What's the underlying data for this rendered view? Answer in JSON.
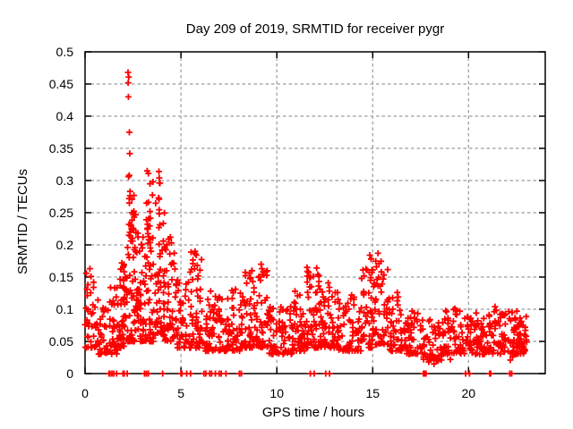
{
  "chart_data": {
    "type": "scatter",
    "title": "Day 209 of 2019, SRMTID for receiver pygr",
    "xlabel": "GPS time / hours",
    "ylabel": "SRMTID / TECUs",
    "xlim": [
      0,
      24
    ],
    "ylim": [
      0,
      0.5
    ],
    "xticks": [
      0,
      5,
      10,
      15,
      20
    ],
    "xtick_labels": [
      "0",
      "5",
      "10",
      "15",
      "20"
    ],
    "yticks": [
      0,
      0.05,
      0.1,
      0.15,
      0.2,
      0.25,
      0.3,
      0.35,
      0.4,
      0.45,
      0.5
    ],
    "ytick_labels": [
      "0",
      "0.05",
      "0.1",
      "0.15",
      "0.2",
      "0.25",
      "0.3",
      "0.35",
      "0.4",
      "0.45",
      "0.5"
    ],
    "grid": {
      "visible": true,
      "style": "dashed",
      "color": "#9b9b9b"
    },
    "legend": "none",
    "colors": {
      "marker": "#ff0000",
      "border": "#000000",
      "text": "#000000",
      "background": "#ffffff"
    },
    "marker": {
      "shape": "plus",
      "size": 7,
      "stroke_width": 1.8
    },
    "series": [
      {
        "name": "SRMTID",
        "color": "#ff0000",
        "notable_points": [
          [
            2.24,
            0.468
          ],
          [
            2.28,
            0.461
          ],
          [
            2.25,
            0.452
          ],
          [
            2.26,
            0.43
          ],
          [
            2.31,
            0.375
          ],
          [
            2.33,
            0.342
          ],
          [
            2.3,
            0.308
          ],
          [
            2.27,
            0.306
          ],
          [
            3.24,
            0.315
          ],
          [
            3.3,
            0.311
          ],
          [
            3.85,
            0.314
          ],
          [
            3.87,
            0.304
          ],
          [
            3.88,
            0.296
          ],
          [
            2.35,
            0.283
          ],
          [
            2.55,
            0.277
          ],
          [
            2.3,
            0.272
          ],
          [
            3.84,
            0.273
          ],
          [
            3.86,
            0.271
          ],
          [
            2.31,
            0.265
          ],
          [
            3.21,
            0.265
          ],
          [
            2.45,
            0.25
          ],
          [
            2.64,
            0.247
          ],
          [
            2.56,
            0.243
          ],
          [
            3.2,
            0.239
          ],
          [
            3.26,
            0.232
          ],
          [
            3.85,
            0.227
          ],
          [
            3.27,
            0.226
          ],
          [
            2.65,
            0.219
          ],
          [
            2.36,
            0.214
          ],
          [
            3.31,
            0.213
          ],
          [
            3.32,
            0.208
          ],
          [
            3.86,
            0.201
          ],
          [
            2.22,
            0.196
          ],
          [
            2.48,
            0.206
          ],
          [
            2.29,
            0.232
          ],
          [
            2.42,
            0.225
          ],
          [
            2.6,
            0.196
          ],
          [
            2.85,
            0.19
          ],
          [
            2.95,
            0.201
          ],
          [
            3.02,
            0.212
          ],
          [
            3.44,
            0.19
          ],
          [
            3.22,
            0.181
          ],
          [
            3.29,
            0.172
          ],
          [
            3.36,
            0.162
          ],
          [
            3.18,
            0.152
          ],
          [
            3.9,
            0.182
          ],
          [
            3.92,
            0.162
          ],
          [
            3.81,
            0.152
          ],
          [
            4.02,
            0.192
          ],
          [
            4.08,
            0.206
          ],
          [
            4.45,
            0.212
          ],
          [
            4.5,
            0.203
          ],
          [
            4.42,
            0.186
          ],
          [
            4.55,
            0.172
          ],
          [
            1.92,
            0.172
          ],
          [
            1.98,
            0.165
          ],
          [
            2.04,
            0.158
          ],
          [
            2.1,
            0.15
          ],
          [
            0.06,
            0.156
          ],
          [
            0.25,
            0.163
          ],
          [
            0.31,
            0.151
          ],
          [
            0.1,
            0.131
          ],
          [
            0.45,
            0.142
          ],
          [
            5.55,
            0.162
          ],
          [
            5.62,
            0.171
          ],
          [
            5.74,
            0.19
          ],
          [
            5.8,
            0.184
          ],
          [
            5.85,
            0.168
          ],
          [
            5.9,
            0.152
          ],
          [
            6.55,
            0.128
          ],
          [
            7.85,
            0.131
          ],
          [
            8.1,
            0.125
          ],
          [
            8.58,
            0.156
          ],
          [
            8.63,
            0.149
          ],
          [
            8.7,
            0.16
          ],
          [
            8.75,
            0.143
          ],
          [
            9.18,
            0.17
          ],
          [
            9.22,
            0.163
          ],
          [
            9.25,
            0.154
          ],
          [
            9.15,
            0.145
          ],
          [
            10.95,
            0.128
          ],
          [
            11.2,
            0.122
          ],
          [
            11.58,
            0.165
          ],
          [
            11.63,
            0.158
          ],
          [
            11.7,
            0.149
          ],
          [
            11.9,
            0.151
          ],
          [
            12.08,
            0.164
          ],
          [
            12.14,
            0.154
          ],
          [
            12.2,
            0.143
          ],
          [
            12.68,
            0.141
          ],
          [
            12.74,
            0.134
          ],
          [
            13.05,
            0.126
          ],
          [
            13.9,
            0.122
          ],
          [
            14.55,
            0.152
          ],
          [
            14.7,
            0.161
          ],
          [
            14.85,
            0.184
          ],
          [
            14.92,
            0.178
          ],
          [
            15.0,
            0.161
          ],
          [
            15.2,
            0.166
          ],
          [
            15.28,
            0.187
          ],
          [
            15.33,
            0.171
          ],
          [
            15.45,
            0.158
          ],
          [
            15.55,
            0.147
          ],
          [
            16.28,
            0.126
          ],
          [
            16.33,
            0.119
          ],
          [
            17.05,
            0.097
          ],
          [
            17.92,
            0.018
          ],
          [
            18.2,
            0.015
          ],
          [
            18.32,
            0.021
          ],
          [
            18.85,
            0.096
          ],
          [
            19.05,
            0.022
          ],
          [
            19.3,
            0.101
          ],
          [
            20.4,
            0.094
          ],
          [
            21.38,
            0.104
          ],
          [
            21.45,
            0.098
          ],
          [
            22.18,
            0.021
          ],
          [
            22.3,
            0.026
          ],
          [
            22.52,
            0.097
          ],
          [
            22.95,
            0.072
          ],
          [
            23.0,
            0.058
          ],
          [
            23.03,
            0.049
          ]
        ],
        "zero_points": [
          1.25,
          1.3,
          1.4,
          1.5,
          1.65,
          1.98,
          2.04,
          2.2,
          3.1,
          3.2,
          3.3,
          4.05,
          5.0,
          5.05,
          5.3,
          5.5,
          6.2,
          6.3,
          6.5,
          6.6,
          6.8,
          7.0,
          7.1,
          7.35,
          8.05,
          8.15,
          11.75,
          11.95,
          12.55,
          12.75,
          17.65,
          17.7,
          17.78,
          19.85,
          20.05,
          21.1,
          21.15,
          22.15,
          22.25
        ],
        "density_clusters": {
          "format": "[x_start, x_end, count, y_low, y_high, bias_exponent] - estimated dense cloud",
          "seed": 42,
          "clusters": [
            [
              0.0,
              0.6,
              32,
              0.04,
              0.16,
              1.6
            ],
            [
              0.6,
              1.2,
              36,
              0.03,
              0.115,
              1.9
            ],
            [
              1.2,
              1.8,
              40,
              0.03,
              0.135,
              1.8
            ],
            [
              1.8,
              2.2,
              46,
              0.04,
              0.175,
              1.7
            ],
            [
              2.2,
              2.7,
              58,
              0.05,
              0.3,
              2.5
            ],
            [
              2.7,
              3.1,
              42,
              0.05,
              0.22,
              2.2
            ],
            [
              3.1,
              3.55,
              52,
              0.05,
              0.31,
              2.3
            ],
            [
              3.55,
              4.15,
              52,
              0.06,
              0.31,
              2.4
            ],
            [
              4.15,
              4.7,
              42,
              0.05,
              0.21,
              2.2
            ],
            [
              4.7,
              5.3,
              42,
              0.04,
              0.15,
              2.0
            ],
            [
              5.3,
              6.1,
              58,
              0.04,
              0.19,
              2.2
            ],
            [
              6.1,
              7.2,
              64,
              0.035,
              0.12,
              1.8
            ],
            [
              7.2,
              8.3,
              64,
              0.035,
              0.13,
              1.8
            ],
            [
              8.3,
              9.0,
              52,
              0.04,
              0.16,
              2.0
            ],
            [
              9.0,
              9.5,
              32,
              0.04,
              0.17,
              2.1
            ],
            [
              9.5,
              10.8,
              80,
              0.03,
              0.105,
              1.6
            ],
            [
              10.8,
              11.5,
              48,
              0.035,
              0.13,
              1.8
            ],
            [
              11.5,
              12.3,
              58,
              0.04,
              0.165,
              1.9
            ],
            [
              12.3,
              13.2,
              58,
              0.04,
              0.13,
              1.8
            ],
            [
              13.2,
              14.4,
              66,
              0.035,
              0.12,
              1.7
            ],
            [
              14.4,
              15.1,
              48,
              0.04,
              0.165,
              1.9
            ],
            [
              15.1,
              15.8,
              48,
              0.045,
              0.19,
              2.0
            ],
            [
              15.8,
              16.6,
              42,
              0.035,
              0.12,
              1.8
            ],
            [
              16.6,
              17.6,
              54,
              0.03,
              0.095,
              1.6
            ],
            [
              17.6,
              18.6,
              52,
              0.02,
              0.085,
              1.5
            ],
            [
              18.6,
              19.6,
              56,
              0.03,
              0.1,
              1.6
            ],
            [
              19.6,
              21.0,
              80,
              0.03,
              0.09,
              1.5
            ],
            [
              21.0,
              22.4,
              80,
              0.03,
              0.1,
              1.6
            ],
            [
              22.4,
              23.05,
              48,
              0.03,
              0.095,
              1.6
            ]
          ]
        }
      }
    ]
  }
}
